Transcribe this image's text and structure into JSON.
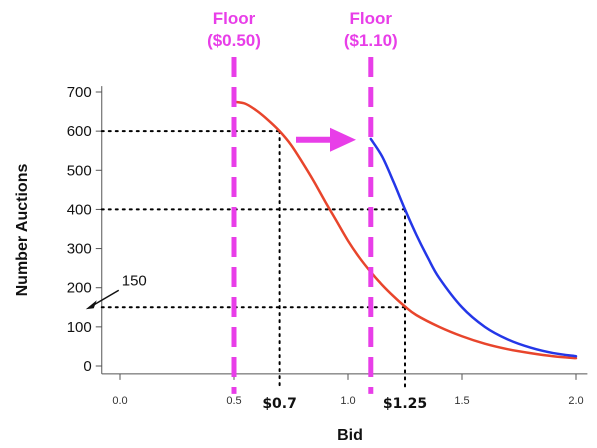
{
  "chart_data": {
    "type": "line",
    "xlabel": "Bid",
    "ylabel": "Number Auctions",
    "xlim": [
      -0.08,
      2.05
    ],
    "ylim": [
      -20,
      720
    ],
    "xticks": [
      0.0,
      0.5,
      1.0,
      1.5,
      2.0
    ],
    "xtick_labels": [
      "0.0",
      "0.5",
      "1.0",
      "1.5",
      "2.0"
    ],
    "yticks": [
      0,
      100,
      200,
      300,
      400,
      500,
      600,
      700
    ],
    "ytick_labels": [
      "0",
      "100",
      "200",
      "300",
      "400",
      "500",
      "600",
      "700"
    ],
    "grid": false,
    "series": [
      {
        "color": "#e8452c",
        "x": [
          0.5,
          0.55,
          0.6,
          0.65,
          0.7,
          0.75,
          0.8,
          0.85,
          0.9,
          0.95,
          1.0,
          1.05,
          1.1,
          1.15,
          1.2,
          1.25,
          1.3,
          1.4,
          1.5,
          1.6,
          1.7,
          1.8,
          1.9,
          2.0
        ],
        "y": [
          675,
          670,
          652,
          628,
          600,
          565,
          520,
          472,
          420,
          370,
          320,
          277,
          240,
          207,
          178,
          152,
          130,
          100,
          76,
          57,
          43,
          33,
          25,
          20
        ]
      },
      {
        "color": "#2437e8",
        "x": [
          1.1,
          1.15,
          1.2,
          1.25,
          1.3,
          1.35,
          1.4,
          1.5,
          1.6,
          1.7,
          1.8,
          1.9,
          2.0
        ],
        "y": [
          580,
          535,
          470,
          400,
          335,
          277,
          225,
          150,
          100,
          68,
          47,
          33,
          25
        ]
      }
    ],
    "floors": [
      {
        "x": 0.5,
        "label_line1": "Floor",
        "label_line2": "($0.50)"
      },
      {
        "x": 1.1,
        "label_line1": "Floor",
        "label_line2": "($1.10)"
      }
    ],
    "guides": [
      {
        "y": 600,
        "x_end": 0.7
      },
      {
        "y": 400,
        "x_end": 1.25
      },
      {
        "y": 150,
        "x_end": 1.25
      }
    ],
    "price_labels": [
      {
        "x": 0.7,
        "text": "$0.7"
      },
      {
        "x": 1.25,
        "text": "$1.25"
      }
    ],
    "annotations": [
      {
        "text": "150",
        "y": 150
      }
    ],
    "colors": {
      "floor": "#e83ee8",
      "guide": "#000000",
      "axis": "#555555"
    }
  }
}
